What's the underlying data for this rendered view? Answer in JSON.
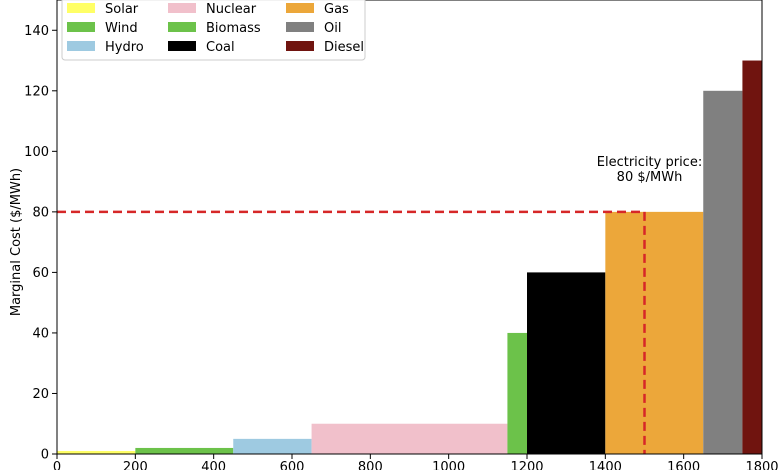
{
  "chart_data": {
    "type": "bar",
    "title": "",
    "xlabel": "",
    "ylabel": "Marginal Cost ($/MWh)",
    "xlim": [
      0,
      1800
    ],
    "ylim": [
      0,
      150
    ],
    "x_ticks": [
      0,
      200,
      400,
      600,
      800,
      1000,
      1200,
      1400,
      1600,
      1800
    ],
    "y_ticks": [
      0,
      20,
      40,
      60,
      80,
      100,
      120,
      140
    ],
    "grid": false,
    "legend_placement": "top-left",
    "series": [
      {
        "name": "Solar",
        "x_start": 0,
        "x_end": 200,
        "value": 1,
        "color": "#ffff66"
      },
      {
        "name": "Wind",
        "x_start": 200,
        "x_end": 450,
        "value": 2,
        "color": "#6cc24a"
      },
      {
        "name": "Hydro",
        "x_start": 450,
        "x_end": 650,
        "value": 5,
        "color": "#9ecae1"
      },
      {
        "name": "Nuclear",
        "x_start": 650,
        "x_end": 1150,
        "value": 10,
        "color": "#f1c0cb"
      },
      {
        "name": "Biomass",
        "x_start": 1150,
        "x_end": 1200,
        "value": 40,
        "color": "#6cc24a"
      },
      {
        "name": "Coal",
        "x_start": 1200,
        "x_end": 1400,
        "value": 60,
        "color": "#000000"
      },
      {
        "name": "Gas",
        "x_start": 1400,
        "x_end": 1650,
        "value": 80,
        "color": "#eca73a"
      },
      {
        "name": "Oil",
        "x_start": 1650,
        "x_end": 1750,
        "value": 120,
        "color": "#808080"
      },
      {
        "name": "Diesel",
        "x_start": 1750,
        "x_end": 1800,
        "value": 130,
        "color": "#70140f"
      }
    ],
    "price_line": {
      "y": 80,
      "x_intersect": 1500,
      "color": "#d62728",
      "annotation_line1": "Electricity price:",
      "annotation_line2": "80 $/MWh"
    }
  }
}
